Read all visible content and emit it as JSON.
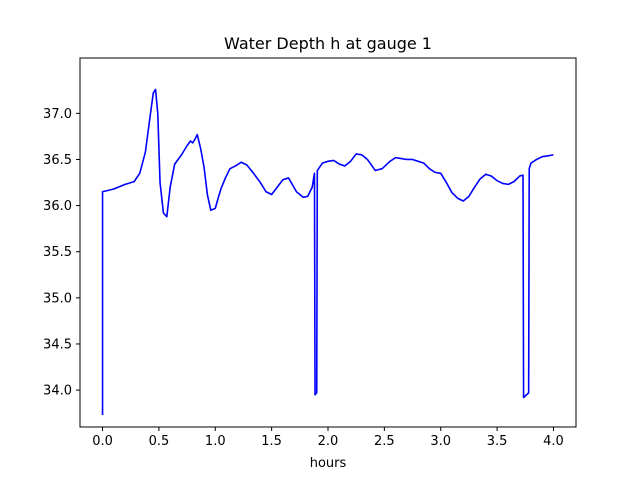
{
  "chart_data": {
    "type": "line",
    "title": "Water Depth h at gauge 1",
    "xlabel": "hours",
    "ylabel": "",
    "xlim": [
      -0.2,
      4.2
    ],
    "ylim": [
      33.6,
      37.6
    ],
    "xticks": [
      0.0,
      0.5,
      1.0,
      1.5,
      2.0,
      2.5,
      3.0,
      3.5,
      4.0
    ],
    "xtick_labels": [
      "0.0",
      "0.5",
      "1.0",
      "1.5",
      "2.0",
      "2.5",
      "3.0",
      "3.5",
      "4.0"
    ],
    "yticks": [
      34.0,
      34.5,
      35.0,
      35.5,
      36.0,
      36.5,
      37.0
    ],
    "ytick_labels": [
      "34.0",
      "34.5",
      "35.0",
      "35.5",
      "36.0",
      "36.5",
      "37.0"
    ],
    "grid": false,
    "legend": "none",
    "series": [
      {
        "color": "#0000ff",
        "x": [
          0.0,
          0.0,
          0.1,
          0.2,
          0.28,
          0.33,
          0.38,
          0.42,
          0.45,
          0.47,
          0.49,
          0.51,
          0.54,
          0.57,
          0.6,
          0.64,
          0.7,
          0.75,
          0.78,
          0.8,
          0.82,
          0.84,
          0.87,
          0.9,
          0.93,
          0.96,
          1.0,
          1.03,
          1.05,
          1.09,
          1.13,
          1.18,
          1.23,
          1.28,
          1.34,
          1.4,
          1.45,
          1.5,
          1.55,
          1.6,
          1.65,
          1.72,
          1.78,
          1.82,
          1.86,
          1.88,
          1.885,
          1.9,
          1.905,
          1.95,
          2.0,
          2.05,
          2.1,
          2.15,
          2.2,
          2.25,
          2.3,
          2.35,
          2.42,
          2.48,
          2.55,
          2.6,
          2.65,
          2.7,
          2.75,
          2.8,
          2.85,
          2.9,
          2.95,
          3.0,
          3.05,
          3.1,
          3.15,
          3.2,
          3.25,
          3.3,
          3.35,
          3.4,
          3.45,
          3.5,
          3.55,
          3.6,
          3.65,
          3.7,
          3.73,
          3.735,
          3.78,
          3.785,
          3.8,
          3.85,
          3.9,
          3.95,
          4.0
        ],
        "y": [
          33.73,
          36.15,
          36.18,
          36.23,
          36.26,
          36.35,
          36.58,
          36.95,
          37.22,
          37.26,
          37.0,
          36.25,
          35.92,
          35.88,
          36.2,
          36.45,
          36.55,
          36.65,
          36.7,
          36.68,
          36.72,
          36.77,
          36.62,
          36.42,
          36.12,
          35.95,
          35.97,
          36.1,
          36.18,
          36.3,
          36.4,
          36.43,
          36.47,
          36.44,
          36.35,
          36.25,
          36.15,
          36.12,
          36.2,
          36.28,
          36.3,
          36.15,
          36.09,
          36.1,
          36.2,
          36.35,
          33.95,
          33.97,
          36.38,
          36.46,
          36.48,
          36.49,
          36.45,
          36.43,
          36.48,
          36.56,
          36.55,
          36.5,
          36.38,
          36.4,
          36.48,
          36.52,
          36.51,
          36.5,
          36.5,
          36.48,
          36.46,
          36.4,
          36.36,
          36.35,
          36.25,
          36.14,
          36.08,
          36.05,
          36.1,
          36.2,
          36.29,
          36.34,
          36.32,
          36.27,
          36.24,
          36.23,
          36.26,
          36.32,
          36.33,
          33.92,
          33.97,
          36.4,
          36.46,
          36.5,
          36.53,
          36.54,
          36.55
        ]
      }
    ]
  }
}
